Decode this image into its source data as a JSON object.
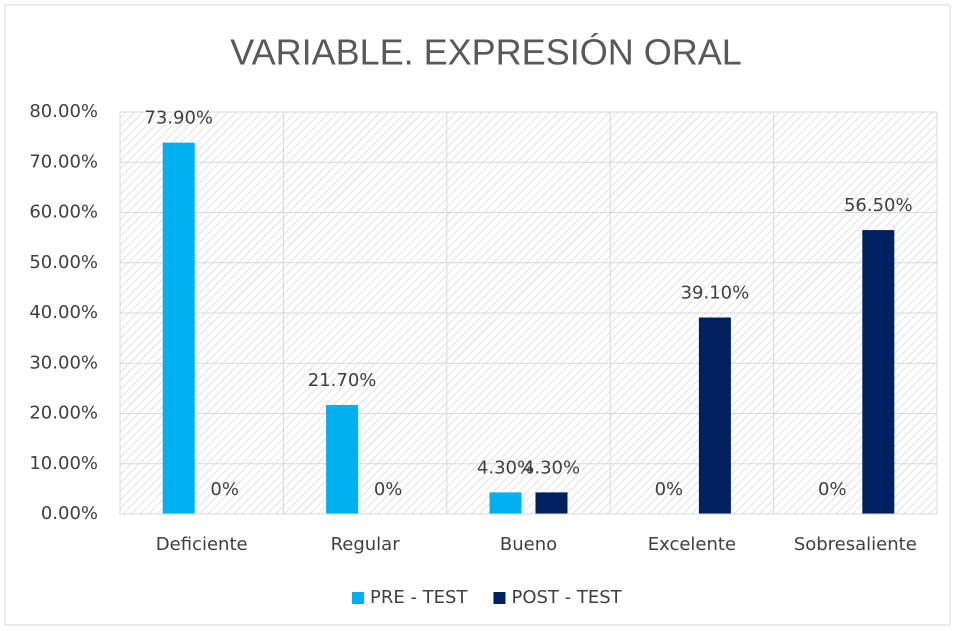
{
  "chart_data": {
    "type": "bar",
    "title": "VARIABLE. EXPRESIÓN ORAL",
    "categories": [
      "Deficiente",
      "Regular",
      "Bueno",
      "Excelente",
      "Sobresaliente"
    ],
    "series": [
      {
        "name": "PRE - TEST",
        "color": "#00b0f0",
        "values": [
          73.9,
          21.7,
          4.3,
          0,
          0
        ],
        "value_labels": [
          "73.90%",
          "21.70%",
          "4.30%",
          "0%",
          "0%"
        ]
      },
      {
        "name": "POST - TEST",
        "color": "#002060",
        "values": [
          0,
          0,
          4.3,
          39.1,
          56.5
        ],
        "value_labels": [
          "0%",
          "0%",
          "4.30%",
          "39.10%",
          "56.50%"
        ]
      }
    ],
    "ylim": [
      0,
      80
    ],
    "yticks": [
      {
        "value": 0,
        "label": "0.00%"
      },
      {
        "value": 10,
        "label": "10.00%"
      },
      {
        "value": 20,
        "label": "20.00%"
      },
      {
        "value": 30,
        "label": "30.00%"
      },
      {
        "value": 40,
        "label": "40.00%"
      },
      {
        "value": 50,
        "label": "50.00%"
      },
      {
        "value": 60,
        "label": "60.00%"
      },
      {
        "value": 70,
        "label": "70.00%"
      },
      {
        "value": 80,
        "label": "80.00%"
      }
    ],
    "grid": true,
    "legend": "bottom"
  }
}
